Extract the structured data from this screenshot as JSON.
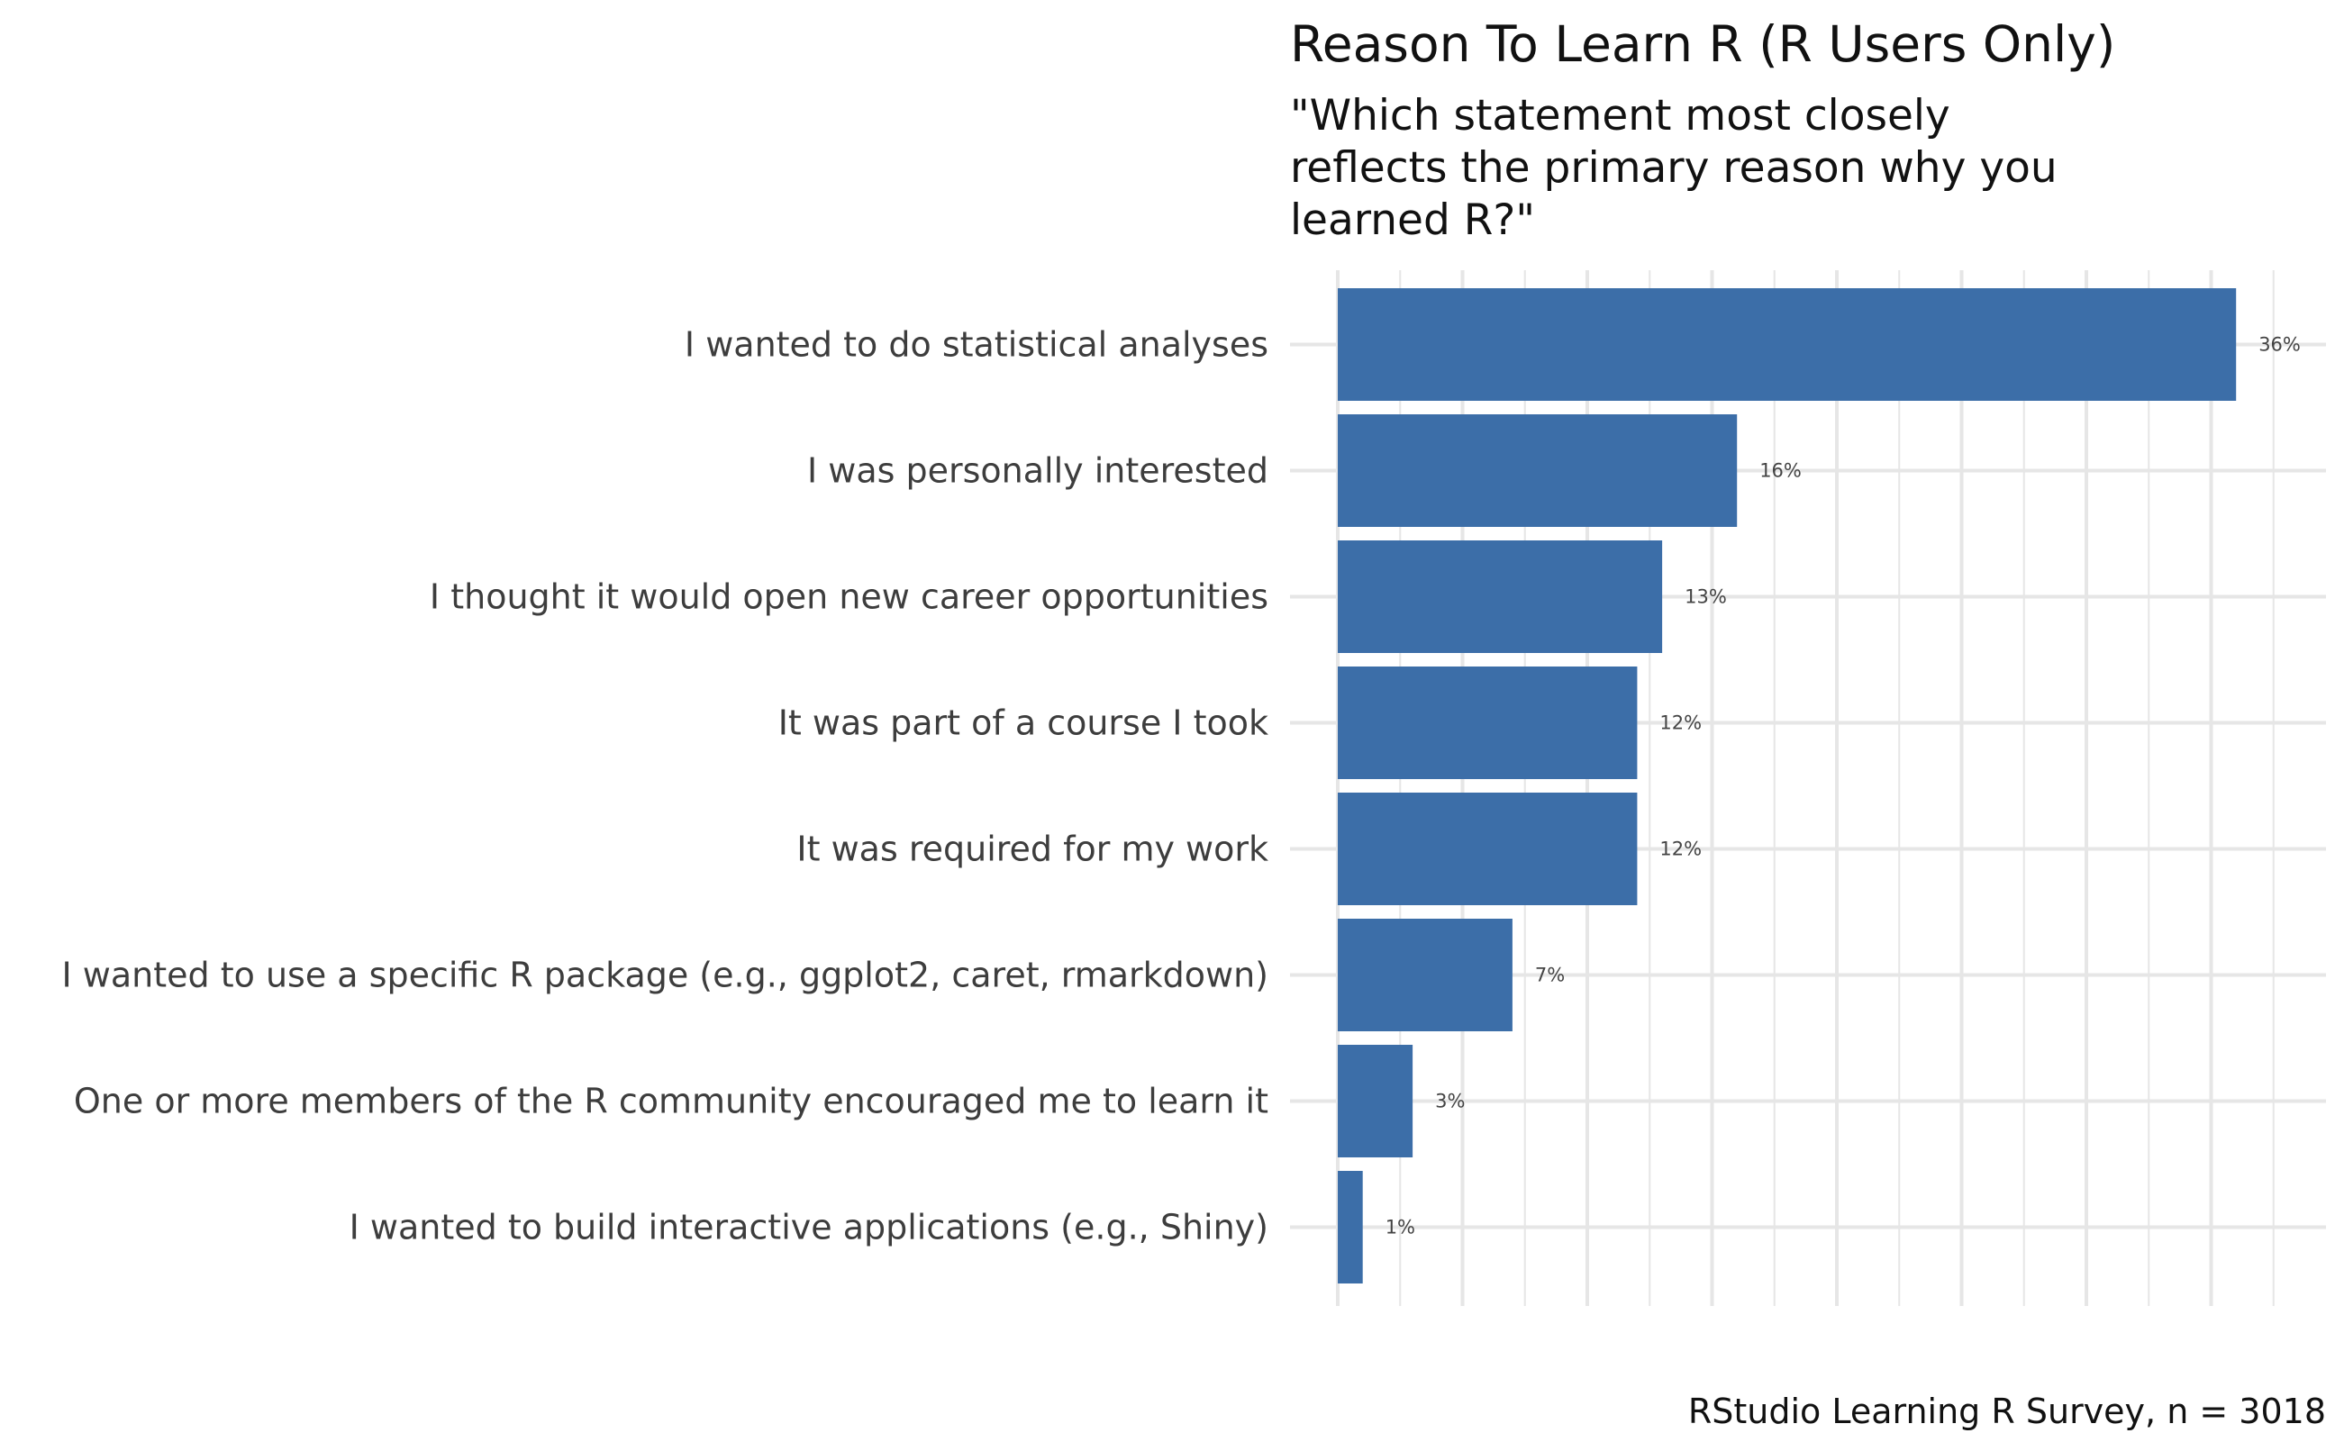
{
  "chart_data": {
    "type": "bar",
    "orientation": "horizontal",
    "title": "Reason To Learn R (R Users Only)",
    "subtitle_lines": [
      "\"Which statement most closely",
      "reflects the primary reason why you",
      "learned R?\""
    ],
    "caption": "RStudio Learning R Survey, n = 3018",
    "categories": [
      "I wanted to do statistical analyses",
      "I was personally interested",
      "I thought it would open new career opportunities",
      "It was part of a course I took",
      "It was required for my work",
      "I wanted to use a specific R package (e.g., ggplot2, caret, rmarkdown)",
      "One or more members of the R community encouraged me to learn it",
      "I wanted to build interactive applications (e.g., Shiny)"
    ],
    "values": [
      36,
      16,
      13,
      12,
      12,
      7,
      3,
      1
    ],
    "value_labels": [
      "36%",
      "16%",
      "13%",
      "12%",
      "12%",
      "7%",
      "3%",
      "1%"
    ],
    "xlabel": "",
    "ylabel": "",
    "xlim": [
      0,
      40
    ],
    "grid": true,
    "bar_color": "#3c6ea8",
    "grid_color": "#e6e6e6"
  }
}
